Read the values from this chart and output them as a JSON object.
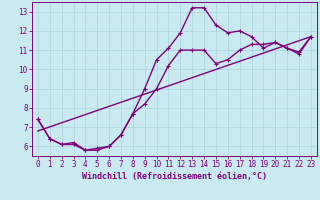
{
  "xlabel": "Windchill (Refroidissement éolien,°C)",
  "bg_color": "#c8eaf0",
  "grid_color": "#b0d8e0",
  "line_color": "#800080",
  "xlim": [
    -0.5,
    23.5
  ],
  "ylim": [
    5.5,
    13.5
  ],
  "xticks": [
    0,
    1,
    2,
    3,
    4,
    5,
    6,
    7,
    8,
    9,
    10,
    11,
    12,
    13,
    14,
    15,
    16,
    17,
    18,
    19,
    20,
    21,
    22,
    23
  ],
  "yticks": [
    6,
    7,
    8,
    9,
    10,
    11,
    12,
    13
  ],
  "curve1_x": [
    0,
    1,
    2,
    3,
    4,
    5,
    6,
    7,
    8,
    9,
    10,
    11,
    12,
    13,
    14,
    15,
    16,
    17,
    18,
    19,
    20,
    21,
    22,
    23
  ],
  "curve1_y": [
    7.4,
    6.4,
    6.1,
    6.1,
    5.8,
    5.8,
    6.0,
    6.6,
    7.7,
    9.0,
    10.5,
    11.1,
    11.9,
    13.2,
    13.2,
    12.3,
    11.9,
    12.0,
    11.7,
    11.1,
    11.4,
    11.1,
    10.8,
    11.7
  ],
  "curve2_x": [
    0,
    1,
    2,
    3,
    4,
    5,
    6,
    7,
    8,
    9,
    10,
    11,
    12,
    13,
    14,
    15,
    16,
    17,
    18,
    19,
    20,
    21,
    22,
    23
  ],
  "curve2_y": [
    7.4,
    6.4,
    6.1,
    6.2,
    5.8,
    5.9,
    6.0,
    6.6,
    7.7,
    8.2,
    9.0,
    10.2,
    11.0,
    11.0,
    11.0,
    10.3,
    10.5,
    11.0,
    11.3,
    11.3,
    11.4,
    11.1,
    10.9,
    11.7
  ],
  "trend_x": [
    0,
    23
  ],
  "trend_y": [
    6.8,
    11.7
  ],
  "marker_size": 2.5,
  "line_width": 1.0,
  "font_size_ticks": 5.5,
  "font_size_xlabel": 6.0
}
